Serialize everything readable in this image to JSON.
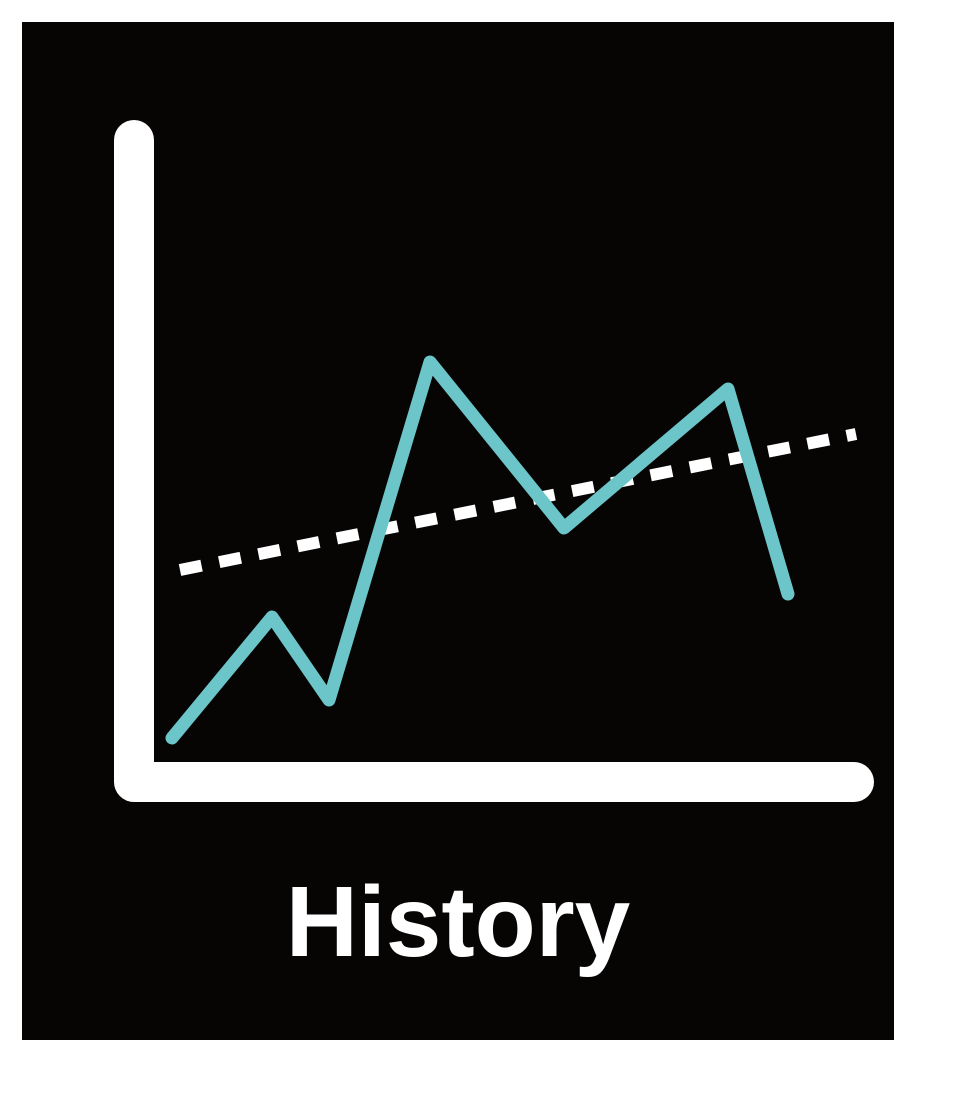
{
  "icon": {
    "name": "history-chart-icon",
    "label": "History",
    "colors": {
      "background": "#070404",
      "axis": "#ffffff",
      "line": "#6cc5c8",
      "trend": "#ffffff"
    }
  }
}
